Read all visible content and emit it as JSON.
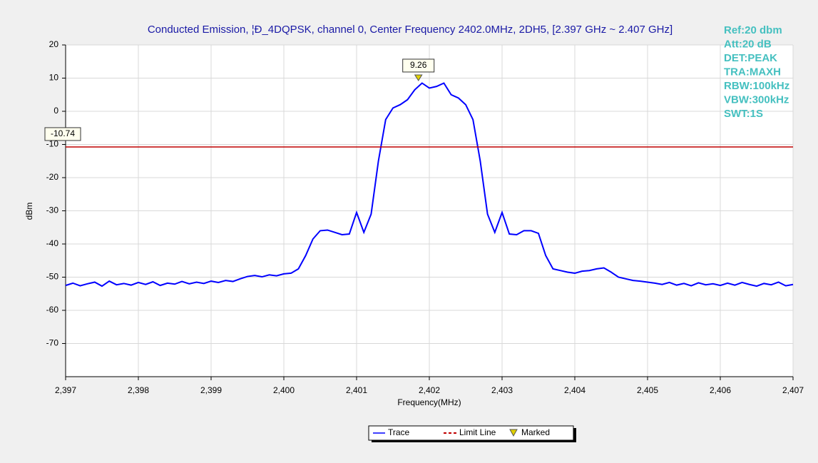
{
  "chart_data": {
    "type": "line",
    "title": "Conducted Emission, ¦Ð_4DQPSK, channel 0, Center Frequency 2402.0MHz, 2DH5, [2.397 GHz ~ 2.407 GHz]",
    "y_label": "dBm",
    "x_label": "Frequency(MHz)",
    "x": [
      2397.0,
      2397.1,
      2397.2,
      2397.3,
      2397.4,
      2397.5,
      2397.6,
      2397.7,
      2397.8,
      2397.9,
      2398.0,
      2398.1,
      2398.2,
      2398.3,
      2398.4,
      2398.5,
      2398.6,
      2398.7,
      2398.8,
      2398.9,
      2399.0,
      2399.1,
      2399.2,
      2399.3,
      2399.4,
      2399.5,
      2399.6,
      2399.7,
      2399.8,
      2399.9,
      2400.0,
      2400.1,
      2400.2,
      2400.3,
      2400.4,
      2400.5,
      2400.6,
      2400.7,
      2400.8,
      2400.9,
      2401.0,
      2401.1,
      2401.2,
      2401.3,
      2401.4,
      2401.5,
      2401.6,
      2401.7,
      2401.8,
      2401.9,
      2402.0,
      2402.1,
      2402.2,
      2402.3,
      2402.4,
      2402.5,
      2402.6,
      2402.7,
      2402.8,
      2402.9,
      2403.0,
      2403.1,
      2403.2,
      2403.3,
      2403.4,
      2403.5,
      2403.6,
      2403.7,
      2403.8,
      2403.9,
      2404.0,
      2404.1,
      2404.2,
      2404.3,
      2404.4,
      2404.5,
      2404.6,
      2404.7,
      2404.8,
      2404.9,
      2405.0,
      2405.1,
      2405.2,
      2405.3,
      2405.4,
      2405.5,
      2405.6,
      2405.7,
      2405.8,
      2405.9,
      2406.0,
      2406.1,
      2406.2,
      2406.3,
      2406.4,
      2406.5,
      2406.6,
      2406.7,
      2406.8,
      2406.9,
      2407.0
    ],
    "series": [
      {
        "name": "Trace",
        "color": "#0000ff",
        "values": [
          -52.5,
          -51.8,
          -52.6,
          -52.0,
          -51.5,
          -52.7,
          -51.2,
          -52.3,
          -51.9,
          -52.4,
          -51.6,
          -52.2,
          -51.4,
          -52.5,
          -51.8,
          -52.1,
          -51.3,
          -52.0,
          -51.5,
          -51.9,
          -51.2,
          -51.6,
          -51.0,
          -51.3,
          -50.5,
          -49.8,
          -49.5,
          -49.9,
          -49.3,
          -49.6,
          -49.0,
          -48.8,
          -47.5,
          -43.5,
          -38.5,
          -36.0,
          -35.8,
          -36.5,
          -37.2,
          -37.0,
          -30.5,
          -36.5,
          -31.0,
          -15.0,
          -2.5,
          1.0,
          2.0,
          3.5,
          6.5,
          8.5,
          7.0,
          7.5,
          8.5,
          5.0,
          4.0,
          2.0,
          -2.5,
          -15.0,
          -31.0,
          -36.5,
          -30.5,
          -37.0,
          -37.2,
          -36.0,
          -36.0,
          -36.8,
          -43.5,
          -47.5,
          -48.0,
          -48.5,
          -48.8,
          -48.2,
          -48.0,
          -47.5,
          -47.2,
          -48.5,
          -50.0,
          -50.5,
          -51.0,
          -51.2,
          -51.5,
          -51.8,
          -52.2,
          -51.6,
          -52.4,
          -51.9,
          -52.6,
          -51.7,
          -52.3,
          -52.0,
          -52.5,
          -51.8,
          -52.4,
          -51.6,
          -52.2,
          -52.7,
          -51.9,
          -52.3,
          -51.5,
          -52.6,
          -52.2
        ]
      }
    ],
    "limit_line": {
      "name": "Limit Line",
      "value": -10.74,
      "color": "#c00000"
    },
    "marker": {
      "name": "Marked",
      "x": 2401.85,
      "value": 9.26,
      "color": "#e0d000"
    },
    "info": [
      "Ref:20 dbm",
      "Att:20 dB",
      "DET:PEAK",
      "TRA:MAXH",
      "RBW:100kHz",
      "VBW:300kHz",
      "SWT:1S"
    ],
    "xlim": [
      2397,
      2407
    ],
    "ylim": [
      -80,
      20
    ],
    "xticks": [
      {
        "value": 2397,
        "label": "2,397"
      },
      {
        "value": 2398,
        "label": "2,398"
      },
      {
        "value": 2399,
        "label": "2,399"
      },
      {
        "value": 2400,
        "label": "2,400"
      },
      {
        "value": 2401,
        "label": "2,401"
      },
      {
        "value": 2402,
        "label": "2,402"
      },
      {
        "value": 2403,
        "label": "2,403"
      },
      {
        "value": 2404,
        "label": "2,404"
      },
      {
        "value": 2405,
        "label": "2,405"
      },
      {
        "value": 2406,
        "label": "2,406"
      },
      {
        "value": 2407,
        "label": "2,407"
      }
    ],
    "yticks": [
      20,
      10,
      0,
      -10,
      -20,
      -30,
      -40,
      -50,
      -60,
      -70
    ],
    "grid": true
  }
}
